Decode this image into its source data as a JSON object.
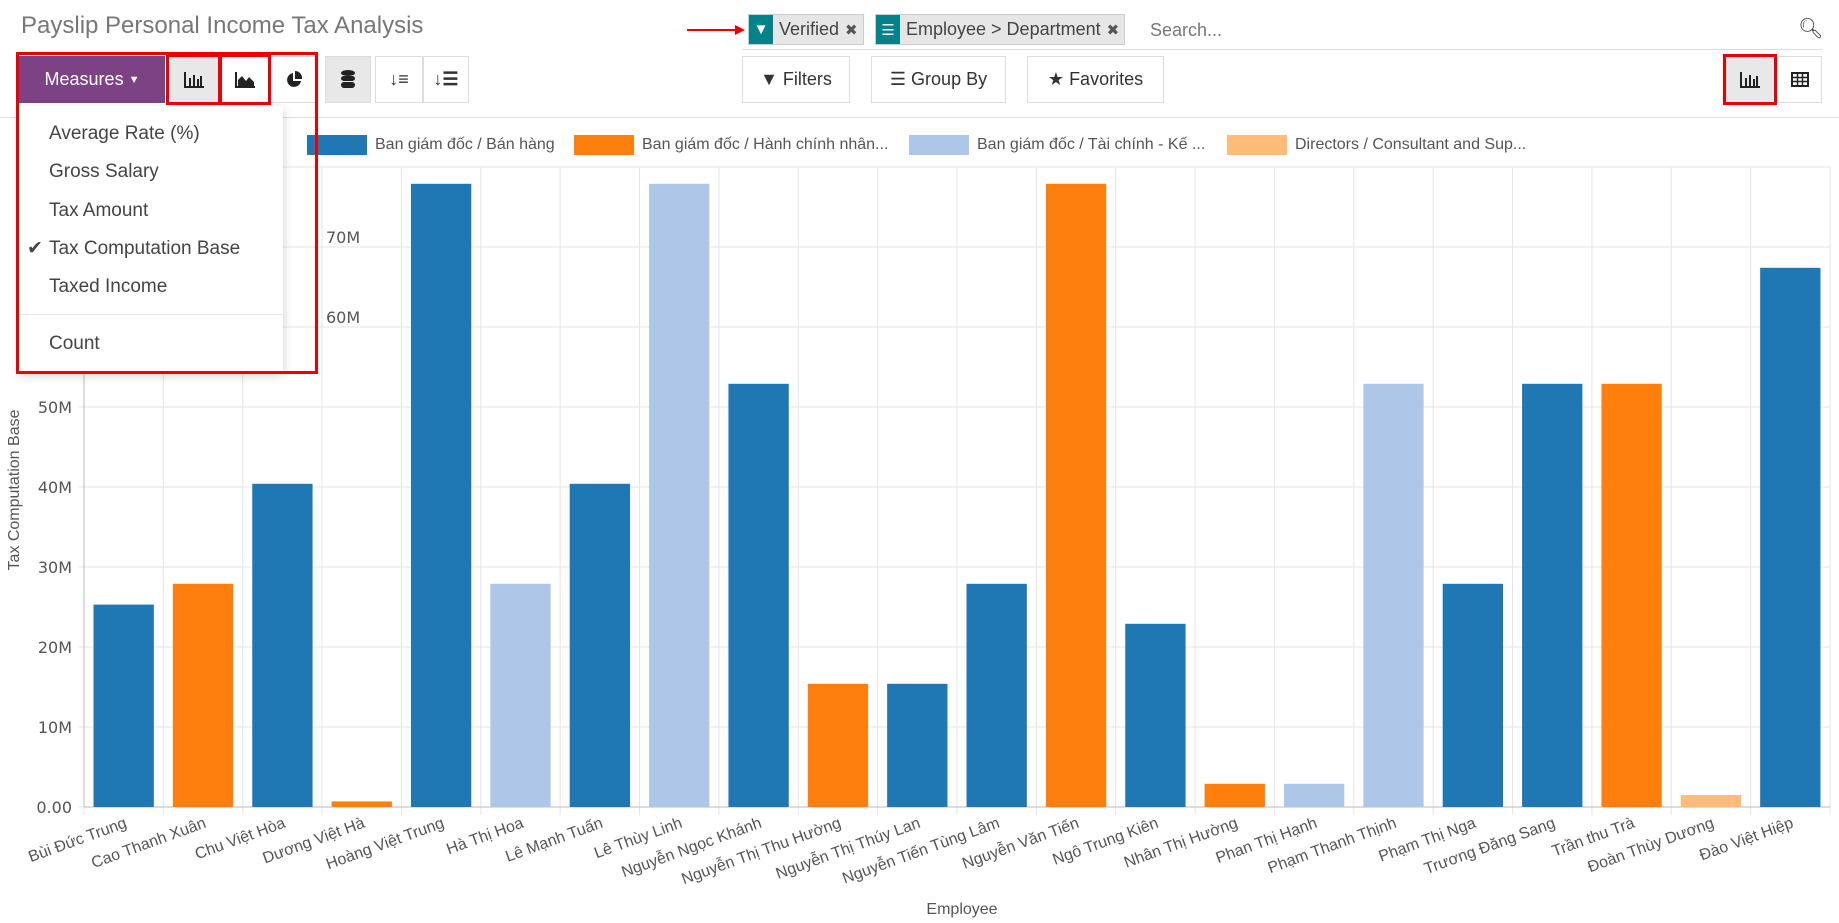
{
  "header": {
    "title": "Payslip Personal Income Tax Analysis"
  },
  "search": {
    "facets": [
      {
        "icon": "filter-icon",
        "label": "Verified"
      },
      {
        "icon": "group-icon",
        "label": "Employee > Department"
      }
    ],
    "placeholder": "Search..."
  },
  "toolbar": {
    "measures_label": "Measures",
    "filters_label": "Filters",
    "group_by_label": "Group By",
    "favorites_label": "Favorites",
    "active_chart": "bar",
    "active_view": "graph"
  },
  "measures_menu": {
    "items": [
      {
        "label": "Average Rate (%)",
        "checked": false
      },
      {
        "label": "Gross Salary",
        "checked": false
      },
      {
        "label": "Tax Amount",
        "checked": false
      },
      {
        "label": "Tax Computation Base",
        "checked": true
      },
      {
        "label": "Taxed Income",
        "checked": false
      }
    ],
    "count_label": "Count"
  },
  "colors": {
    "accent": "#7c4283",
    "facet": "#01838a",
    "highlight": "#e00000"
  },
  "chart_data": {
    "type": "bar",
    "xlabel": "Employee",
    "ylabel": "Tax Computation Base",
    "ylim": [
      0,
      80000000
    ],
    "yticks": [
      {
        "v": 0,
        "label": "0.00"
      },
      {
        "v": 10000000,
        "label": "10M"
      },
      {
        "v": 20000000,
        "label": "20M"
      },
      {
        "v": 30000000,
        "label": "30M"
      },
      {
        "v": 40000000,
        "label": "40M"
      },
      {
        "v": 50000000,
        "label": "50M"
      },
      {
        "v": 60000000,
        "label": "60M"
      },
      {
        "v": 70000000,
        "label": "70M"
      }
    ],
    "grid": true,
    "legend_position": "top",
    "series": [
      {
        "name": "Ban giám đốc / Bán hàng",
        "color": "#1f77b4"
      },
      {
        "name": "Ban giám đốc / Hành chính nhân...",
        "color": "#ff7f0e"
      },
      {
        "name": "Ban giám đốc / Tài chính - Kế ...",
        "color": "#aec7e8"
      },
      {
        "name": "Directors / Consultant and Sup...",
        "color": "#ffbb78"
      }
    ],
    "categories": [
      "Bùi Đức Trung",
      "Cao Thanh Xuân",
      "Chu Việt Hòa",
      "Dương Việt Hà",
      "Hoàng Việt Trung",
      "Hà Thị Hoa",
      "Lê Mạnh Tuấn",
      "Lê Thùy Linh",
      "Nguyễn Ngọc Khánh",
      "Nguyễn Thị Thu Hường",
      "Nguyễn Thị Thúy Lan",
      "Nguyễn Tiến Tùng Lâm",
      "Nguyễn Văn Tiến",
      "Ngô Trung Kiên",
      "Nhân Thị Hường",
      "Phan Thị Hạnh",
      "Phạm Thanh Thịnh",
      "Phạm Thị Nga",
      "Trương Đăng Sang",
      "Trần thu Trà",
      "Đoàn Thùy Dương",
      "Đào Việt Hiệp"
    ],
    "bars": [
      {
        "series": 0,
        "value": 25300000
      },
      {
        "series": 1,
        "value": 27900000
      },
      {
        "series": 0,
        "value": 40400000
      },
      {
        "series": 1,
        "value": 700000
      },
      {
        "series": 0,
        "value": 77900000
      },
      {
        "series": 2,
        "value": 27900000
      },
      {
        "series": 0,
        "value": 40400000
      },
      {
        "series": 2,
        "value": 77900000
      },
      {
        "series": 0,
        "value": 52900000
      },
      {
        "series": 1,
        "value": 15400000
      },
      {
        "series": 0,
        "value": 15400000
      },
      {
        "series": 0,
        "value": 27900000
      },
      {
        "series": 1,
        "value": 77900000
      },
      {
        "series": 0,
        "value": 22900000
      },
      {
        "series": 1,
        "value": 2900000
      },
      {
        "series": 2,
        "value": 2900000
      },
      {
        "series": 2,
        "value": 52900000
      },
      {
        "series": 0,
        "value": 27900000
      },
      {
        "series": 0,
        "value": 52900000
      },
      {
        "series": 1,
        "value": 52900000
      },
      {
        "series": 3,
        "value": 1500000
      },
      {
        "series": 0,
        "value": 67400000
      }
    ]
  }
}
